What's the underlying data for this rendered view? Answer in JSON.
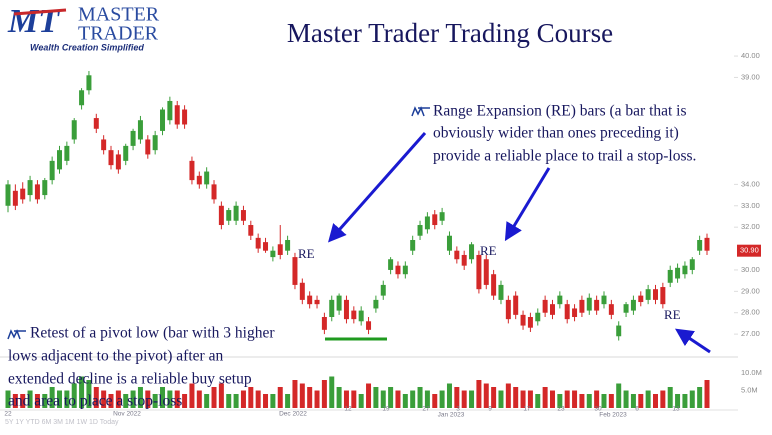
{
  "header": {
    "logo_mark": "MT",
    "logo_line1": "MASTER",
    "logo_line2": "TRADER",
    "tagline": "Wealth Creation Simplified",
    "title": "Master Trader Trading Course"
  },
  "annotations": {
    "range_expansion": [
      "Range Expansion (RE) bars (a bar that is",
      "obviously wider than ones preceding it)",
      "provide a reliable place to trail a stop-loss."
    ],
    "retest": [
      "Retest of a pivot low (bar with 3 higher",
      "lows adjacent to the pivot) after an",
      "extended decline is a reliable buy setup",
      "and area to place a stop-loss"
    ],
    "re_labels": [
      "RE",
      "RE",
      "RE"
    ]
  },
  "chart_data": {
    "type": "candlestick",
    "open": [
      33.0,
      33.7,
      33.8,
      33.5,
      34.0,
      33.5,
      34.2,
      34.7,
      35.1,
      36.1,
      37.7,
      38.4,
      37.1,
      36.1,
      35.6,
      35.4,
      35.1,
      35.8,
      36.1,
      36.1,
      35.6,
      36.5,
      37.0,
      37.7,
      37.5,
      35.1,
      34.4,
      34.0,
      34.0,
      33.0,
      32.3,
      32.3,
      32.8,
      32.1,
      31.5,
      31.3,
      30.6,
      31.2,
      30.9,
      30.6,
      29.4,
      28.8,
      28.6,
      27.8,
      27.8,
      28.1,
      28.6,
      28.1,
      27.6,
      27.6,
      28.2,
      28.8,
      30.0,
      30.2,
      29.8,
      30.9,
      31.6,
      31.9,
      32.6,
      32.3,
      30.9,
      30.9,
      30.7,
      30.5,
      30.7,
      30.5,
      29.8,
      28.6,
      28.6,
      28.8,
      27.9,
      27.8,
      27.6,
      28.6,
      28.4,
      28.4,
      28.4,
      28.2,
      28.6,
      28.1,
      28.6,
      28.4,
      28.4,
      26.9,
      28.0,
      28.1,
      28.8,
      28.6,
      29.1,
      29.2,
      29.4,
      29.6,
      29.8,
      30.0,
      30.9,
      31.5
    ],
    "high": [
      34.2,
      34.0,
      34.1,
      34.4,
      34.2,
      34.3,
      35.3,
      35.8,
      36.0,
      37.1,
      38.5,
      39.3,
      37.3,
      36.3,
      35.8,
      35.6,
      35.9,
      36.6,
      37.2,
      36.3,
      36.5,
      37.6,
      38.1,
      37.9,
      37.7,
      35.3,
      34.6,
      34.8,
      34.2,
      33.2,
      32.9,
      33.2,
      33.0,
      32.3,
      31.7,
      31.5,
      31.1,
      32.1,
      31.6,
      30.8,
      29.6,
      29.0,
      28.8,
      28.0,
      28.8,
      28.9,
      28.8,
      28.3,
      28.3,
      27.8,
      28.8,
      29.5,
      30.6,
      30.4,
      30.4,
      31.6,
      32.3,
      32.7,
      32.8,
      32.9,
      31.8,
      31.1,
      30.9,
      31.3,
      30.9,
      30.7,
      30.0,
      29.5,
      28.8,
      29.0,
      28.1,
      28.0,
      28.2,
      28.8,
      28.6,
      29.0,
      28.6,
      28.4,
      28.8,
      28.9,
      28.8,
      29.0,
      28.6,
      27.6,
      28.5,
      28.8,
      29.0,
      29.3,
      29.3,
      29.4,
      30.2,
      30.3,
      30.4,
      30.6,
      31.6,
      31.7
    ],
    "low": [
      32.7,
      32.8,
      33.1,
      33.2,
      33.1,
      33.3,
      34.0,
      34.5,
      34.9,
      35.9,
      37.5,
      38.2,
      36.4,
      35.4,
      34.7,
      34.5,
      34.9,
      35.6,
      35.9,
      35.2,
      35.4,
      36.3,
      36.8,
      36.6,
      36.6,
      34.0,
      33.8,
      33.8,
      33.1,
      31.9,
      32.1,
      32.1,
      32.1,
      31.4,
      30.8,
      30.8,
      30.4,
      30.5,
      30.7,
      29.1,
      28.4,
      28.2,
      28.2,
      27.0,
      27.6,
      27.9,
      27.5,
      27.5,
      27.4,
      27.0,
      28.0,
      28.6,
      29.8,
      29.6,
      29.6,
      30.7,
      31.4,
      31.7,
      31.9,
      32.1,
      30.7,
      30.3,
      30.0,
      30.3,
      28.9,
      29.1,
      28.6,
      28.4,
      27.5,
      27.7,
      27.2,
      27.1,
      27.4,
      27.8,
      27.7,
      28.2,
      27.5,
      27.6,
      27.8,
      27.9,
      27.9,
      28.2,
      27.7,
      26.7,
      27.8,
      27.9,
      28.3,
      28.4,
      28.4,
      28.2,
      29.2,
      29.4,
      29.6,
      29.8,
      30.7,
      30.7
    ],
    "close": [
      34.0,
      33.0,
      33.3,
      34.2,
      33.3,
      34.2,
      35.1,
      35.6,
      35.8,
      37.0,
      38.4,
      39.1,
      36.6,
      35.6,
      34.9,
      34.7,
      35.8,
      36.5,
      37.0,
      35.4,
      36.3,
      37.5,
      37.9,
      36.8,
      36.8,
      34.2,
      34.0,
      34.6,
      33.3,
      32.1,
      32.8,
      33.0,
      32.3,
      31.6,
      31.0,
      30.9,
      30.9,
      30.7,
      31.4,
      29.3,
      28.6,
      28.4,
      28.4,
      27.2,
      28.6,
      28.8,
      27.7,
      27.7,
      28.1,
      27.2,
      28.6,
      29.3,
      30.5,
      29.8,
      30.2,
      31.4,
      32.1,
      32.5,
      32.1,
      32.7,
      31.6,
      30.5,
      30.2,
      31.2,
      29.1,
      29.3,
      28.8,
      29.3,
      27.7,
      27.9,
      27.4,
      27.3,
      28.0,
      28.0,
      27.9,
      28.8,
      27.7,
      27.8,
      28.0,
      28.7,
      28.1,
      28.8,
      27.9,
      27.4,
      28.4,
      28.6,
      28.5,
      29.1,
      28.6,
      28.4,
      30.0,
      30.1,
      30.2,
      30.5,
      31.4,
      30.9
    ],
    "volume": [
      5,
      4,
      4,
      5,
      4,
      4,
      6,
      5,
      5,
      7,
      9,
      8,
      6,
      5,
      4,
      5,
      4,
      5,
      6,
      5,
      4,
      6,
      5,
      5,
      4,
      7,
      5,
      4,
      6,
      7,
      4,
      4,
      5,
      6,
      5,
      4,
      4,
      6,
      4,
      8,
      7,
      6,
      5,
      8,
      9,
      6,
      5,
      5,
      4,
      7,
      6,
      5,
      6,
      5,
      4,
      5,
      6,
      5,
      4,
      5,
      7,
      6,
      5,
      5,
      8,
      7,
      6,
      5,
      7,
      6,
      5,
      5,
      4,
      6,
      5,
      4,
      5,
      5,
      4,
      4,
      5,
      4,
      4,
      7,
      5,
      4,
      4,
      5,
      4,
      5,
      6,
      4,
      4,
      5,
      6,
      8
    ],
    "up_color": "#3a9e3a",
    "down_color": "#d42828",
    "ylim": [
      25.93,
      40.75
    ],
    "yticks": [
      {
        "value": 40,
        "label": "40.00"
      },
      {
        "value": 39,
        "label": "39.00"
      },
      {
        "value": 34,
        "label": "34.00"
      },
      {
        "value": 33,
        "label": "33.00"
      },
      {
        "value": 32,
        "label": "32.00"
      },
      {
        "value": 30,
        "label": "30.00"
      },
      {
        "value": 29,
        "label": "29.00"
      },
      {
        "value": 28,
        "label": "28.00"
      },
      {
        "value": 27,
        "label": "27.00"
      }
    ],
    "last_price_label": "30.90",
    "volume_ticks": [
      {
        "value": 10,
        "label": "10.0M"
      },
      {
        "value": 5,
        "label": "5.0M"
      }
    ],
    "x_labels": [
      "22",
      "Nov 2022",
      "Dec 2022",
      "12",
      "19",
      "27",
      "3",
      "Jan 2023",
      "9",
      "17",
      "23",
      "30",
      "Feb 2023",
      "6",
      "13"
    ],
    "range_buttons": "5Y 1Y YTD 6M 3M 1M 1W 1D Today"
  }
}
